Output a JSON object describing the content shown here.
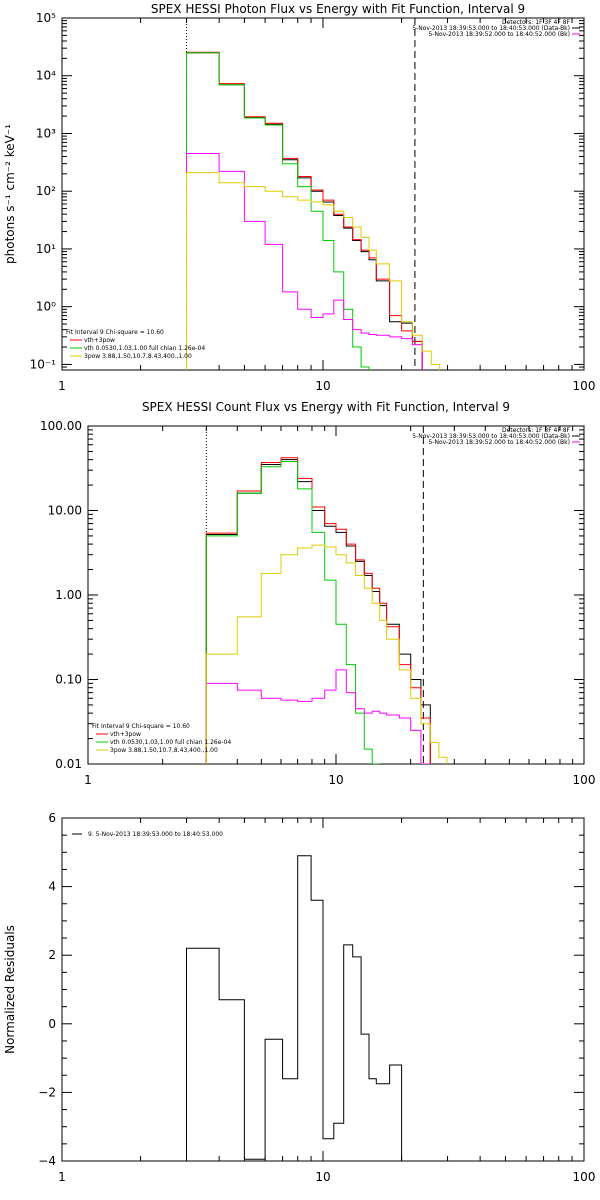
{
  "chart_data": [
    {
      "type": "line",
      "title": "SPEX HESSI Photon Flux vs Energy with Fit Function, Interval 9",
      "ylabel": "photons s⁻¹ cm⁻² keV⁻¹",
      "xlabel": "",
      "xscale": "log",
      "yscale": "log",
      "xlim": [
        1,
        100
      ],
      "ylim": [
        0.08,
        100000
      ],
      "xticks": [
        1,
        10,
        100
      ],
      "xtick_labels": [
        "1",
        "10",
        "100"
      ],
      "yticks": [
        0.1,
        1,
        10,
        100,
        1000,
        10000,
        100000
      ],
      "ytick_labels": [
        "10⁻¹",
        "10⁰",
        "10¹",
        "10²",
        "10³",
        "10⁴",
        "10⁵"
      ],
      "vlines": [
        {
          "x": 3.0,
          "style": "dotted"
        },
        {
          "x": 22.5,
          "style": "dashed"
        }
      ],
      "header": [
        "Detectors: 1F 3F 4F 8F",
        "5-Nov-2013 18:39:53.000 to 18:40:53.000 (Data-Bk)",
        "5-Nov-2013 18:39:52.000 to 18:40:52.000 (Bk)"
      ],
      "fit_text": [
        "Fit Interval 9   Chi-square = 10.60",
        "vth+3pow",
        "vth 0.0530,1.03,1.00  full chian 1.26e-04",
        "3pow 3.88,1.50,10.7,8.43,400.,1.00"
      ],
      "edges": [
        3.0,
        4.0,
        5.0,
        6.0,
        7.0,
        8.0,
        9.0,
        10.0,
        11.0,
        12.0,
        13.0,
        14.0,
        15.0,
        16.0,
        18.0,
        20.0,
        22.0,
        24.0,
        26.0,
        28.0
      ],
      "series": [
        {
          "color": "#000000",
          "values": [
            25000,
            7000,
            1900,
            1450,
            350,
            170,
            100,
            65,
            38,
            23,
            14,
            9,
            6.5,
            2.8,
            0.55,
            0.52,
            0.25,
            null,
            null
          ]
        },
        {
          "color": "#ff0000",
          "values": [
            25500,
            7300,
            1950,
            1500,
            370,
            180,
            105,
            70,
            40,
            24,
            14.5,
            9.5,
            7,
            3,
            0.7,
            0.38,
            0.25,
            null,
            null
          ]
        },
        {
          "color": "#00cc00",
          "values": [
            25000,
            7000,
            1850,
            1400,
            300,
            120,
            45,
            14,
            4,
            0.9,
            0.2,
            0.09,
            null,
            null,
            null,
            null,
            null,
            null,
            null
          ]
        },
        {
          "color": "#ff00ff",
          "values": [
            450,
            220,
            30,
            12,
            1.8,
            0.9,
            0.65,
            0.75,
            1.3,
            0.6,
            0.4,
            0.35,
            0.33,
            0.32,
            0.3,
            0.28,
            0.22,
            null,
            null
          ]
        },
        {
          "color": "#ddcc00",
          "values": [
            210,
            140,
            120,
            100,
            80,
            70,
            65,
            58,
            45,
            35,
            24,
            16,
            9.5,
            5.5,
            2.8,
            0.55,
            0.32,
            0.17,
            0.1
          ]
        }
      ]
    },
    {
      "type": "line",
      "title": "SPEX HESSI Count Flux vs Energy with Fit Function, Interval 9",
      "xscale": "log",
      "yscale": "log",
      "xlim": [
        1,
        100
      ],
      "ylim": [
        0.01,
        100
      ],
      "xticks": [
        1,
        10,
        100
      ],
      "xtick_labels": [
        "1",
        "10",
        "100"
      ],
      "yticks": [
        0.01,
        0.1,
        1,
        10,
        100
      ],
      "ytick_labels": [
        "0.01",
        "0.10",
        "1.00",
        "10.00",
        "100.00"
      ],
      "vlines": [
        {
          "x": 3.0,
          "style": "dotted"
        },
        {
          "x": 22.5,
          "style": "dashed"
        }
      ],
      "header": [
        "Detectors: 1F 3F 4F 8F",
        "5-Nov-2013 18:39:53.000 to 18:40:53.000 (Data-Bk)",
        "5-Nov-2013 18:39:52.000 to 18:40:52.000 (Bk)"
      ],
      "fit_text": [
        "Fit Interval 9   Chi-square = 10.60",
        "vth+3pow",
        "vth 0.0530,1.03,1.00  full chian 1.26e-04",
        "3pow 3.88,1.50,10.7,8.43,400.,1.00"
      ],
      "edges": [
        3.0,
        4.0,
        5.0,
        6.0,
        7.0,
        8.0,
        9.0,
        10.0,
        11.0,
        12.0,
        13.0,
        14.0,
        15.0,
        16.0,
        18.0,
        20.0,
        22.0,
        24.0,
        26.0,
        28.0
      ],
      "series": [
        {
          "color": "#000000",
          "values": [
            5.2,
            16,
            35,
            40,
            22,
            10,
            6.5,
            5.5,
            3.8,
            2.5,
            1.7,
            1.1,
            0.75,
            0.45,
            0.2,
            0.1,
            0.05,
            null,
            null
          ]
        },
        {
          "color": "#ff0000",
          "values": [
            5.4,
            17,
            37,
            42,
            24,
            11,
            7,
            6,
            4,
            2.6,
            1.8,
            1.2,
            0.8,
            0.42,
            0.15,
            0.08,
            0.035,
            null,
            null
          ]
        },
        {
          "color": "#00cc00",
          "values": [
            5.0,
            16,
            33,
            38,
            18,
            5.5,
            1.5,
            0.45,
            0.15,
            0.04,
            0.015,
            0.01,
            null,
            null,
            null,
            null,
            null,
            null,
            null
          ]
        },
        {
          "color": "#ff00ff",
          "values": [
            0.09,
            0.075,
            0.06,
            0.057,
            0.055,
            0.06,
            0.075,
            0.13,
            0.07,
            0.045,
            0.04,
            0.042,
            0.04,
            0.038,
            0.035,
            0.025,
            0.01,
            null,
            null
          ]
        },
        {
          "color": "#ddcc00",
          "values": [
            0.2,
            0.55,
            1.8,
            3.0,
            3.6,
            3.9,
            3.7,
            3.0,
            2.4,
            1.7,
            1.2,
            0.8,
            0.5,
            0.3,
            0.13,
            0.06,
            0.03,
            0.018,
            0.012
          ]
        }
      ]
    },
    {
      "type": "line",
      "title": "",
      "ylabel": "Normalized Residuals",
      "xscale": "log",
      "yscale": "linear",
      "xlim": [
        1,
        100
      ],
      "ylim": [
        -4,
        6
      ],
      "xticks": [
        1,
        10,
        100
      ],
      "xtick_labels": [
        "1",
        "10",
        "100"
      ],
      "yticks": [
        -4,
        -2,
        0,
        2,
        4,
        6
      ],
      "ytick_labels": [
        "−4",
        "−2",
        "0",
        "2",
        "4",
        "6"
      ],
      "legend": "9. 5-Nov-2013 18:39:53.000 to 18:40:53.000",
      "edges": [
        3.0,
        4.0,
        5.0,
        6.0,
        7.0,
        8.0,
        9.0,
        10.0,
        11.0,
        12.0,
        13.0,
        14.0,
        15.0,
        16.0,
        18.0,
        20.0,
        22.0
      ],
      "series": [
        {
          "color": "#000000",
          "values": [
            2.2,
            0.7,
            -3.95,
            -0.45,
            -1.6,
            4.9,
            3.6,
            -3.35,
            -2.9,
            2.3,
            1.95,
            -0.3,
            -1.6,
            -1.75,
            -1.2,
            null
          ]
        }
      ]
    }
  ]
}
